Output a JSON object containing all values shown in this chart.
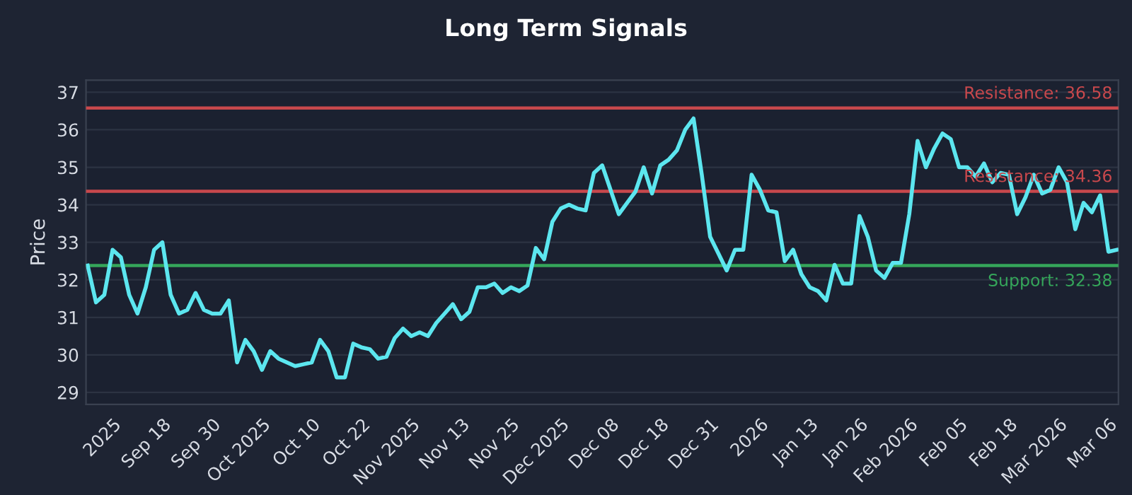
{
  "chart_data": {
    "type": "line",
    "title": "Long Term Signals",
    "ylabel": "Price",
    "categories": [
      null,
      null,
      null,
      "2025",
      null,
      null,
      null,
      null,
      null,
      "Sep 18",
      null,
      null,
      null,
      null,
      null,
      "Sep 30",
      null,
      null,
      null,
      null,
      null,
      "Oct 2025",
      null,
      null,
      null,
      null,
      null,
      "Oct 10",
      null,
      null,
      null,
      null,
      null,
      "Oct 22",
      null,
      null,
      null,
      null,
      null,
      "Nov 2025",
      null,
      null,
      null,
      null,
      null,
      "Nov 13",
      null,
      null,
      null,
      null,
      null,
      "Nov 25",
      null,
      null,
      null,
      null,
      null,
      "Dec 2025",
      null,
      null,
      null,
      null,
      null,
      "Dec 08",
      null,
      null,
      null,
      null,
      null,
      "Dec 18",
      null,
      null,
      null,
      null,
      null,
      "Dec 31",
      null,
      null,
      null,
      null,
      null,
      "2026",
      null,
      null,
      null,
      null,
      null,
      "Jan 13",
      null,
      null,
      null,
      null,
      null,
      "Jan 26",
      null,
      null,
      null,
      null,
      null,
      "Feb 2026",
      null,
      null,
      null,
      null,
      null,
      "Feb 05",
      null,
      null,
      null,
      null,
      null,
      "Feb 18",
      null,
      null,
      null,
      null,
      null,
      "Mar 2026",
      null,
      null,
      null,
      null,
      null,
      "Mar 06",
      null
    ],
    "series": [
      {
        "color": "#5ce6ef",
        "values": [
          32.38,
          31.4,
          31.6,
          32.8,
          32.6,
          31.6,
          31.1,
          31.8,
          32.8,
          33.0,
          31.6,
          31.1,
          31.2,
          31.65,
          31.2,
          31.1,
          31.1,
          31.45,
          29.8,
          30.4,
          30.1,
          29.6,
          30.1,
          29.9,
          29.8,
          29.7,
          29.75,
          29.8,
          30.4,
          30.1,
          29.4,
          29.4,
          30.3,
          30.2,
          30.15,
          29.9,
          29.95,
          30.45,
          30.7,
          30.5,
          30.6,
          30.5,
          30.85,
          31.1,
          31.35,
          30.95,
          31.15,
          31.8,
          31.8,
          31.9,
          31.65,
          31.8,
          31.7,
          31.85,
          32.85,
          32.55,
          33.55,
          33.9,
          34.0,
          33.9,
          33.85,
          34.85,
          35.05,
          34.4,
          33.75,
          34.05,
          34.35,
          35.0,
          34.3,
          35.05,
          35.2,
          35.45,
          36.0,
          36.3,
          34.8,
          33.15,
          32.7,
          32.25,
          32.8,
          32.8,
          34.8,
          34.4,
          33.85,
          33.8,
          32.5,
          32.8,
          32.15,
          31.8,
          31.7,
          31.45,
          32.4,
          31.9,
          31.9,
          33.7,
          33.15,
          32.25,
          32.05,
          32.45,
          32.45,
          33.75,
          35.7,
          35.0,
          35.5,
          35.9,
          35.75,
          35.0,
          35.0,
          34.75,
          35.1,
          34.6,
          34.85,
          34.8,
          33.75,
          34.2,
          34.8,
          34.3,
          34.4,
          35.0,
          34.6,
          33.35,
          34.05,
          33.8,
          34.25,
          32.75,
          32.8
        ]
      }
    ],
    "ylim": [
      28.68,
      37.32
    ],
    "yticks": [
      29,
      30,
      31,
      32,
      33,
      34,
      35,
      36,
      37
    ],
    "grid": "y",
    "ref_lines": [
      {
        "axis": "y",
        "value": 36.58,
        "label": "Resistance: 36.58",
        "color": "#c8484c"
      },
      {
        "axis": "y",
        "value": 34.36,
        "label": "Resistance: 34.36",
        "color": "#c8484c"
      },
      {
        "axis": "y",
        "value": 32.38,
        "label": "Support: 32.38",
        "color": "#35a65a"
      }
    ]
  }
}
